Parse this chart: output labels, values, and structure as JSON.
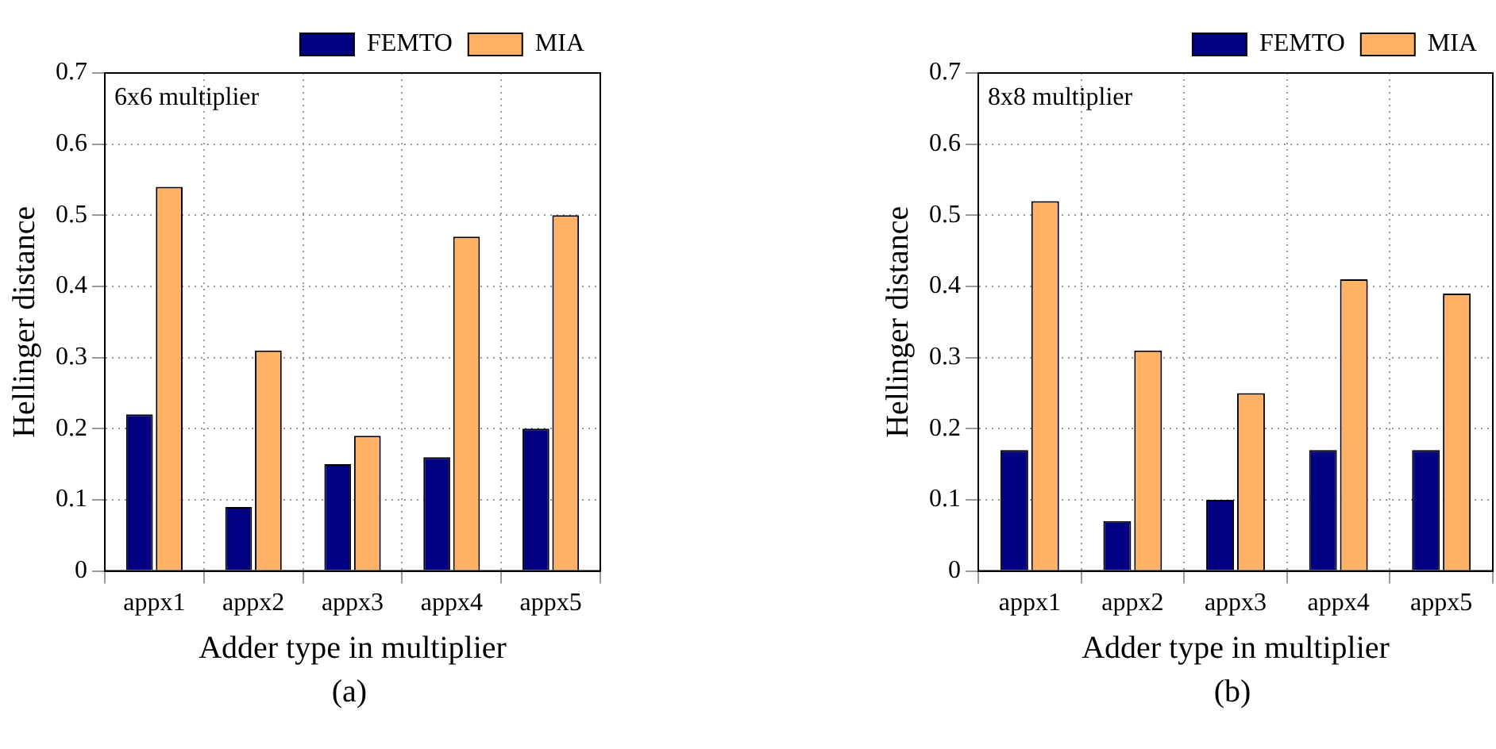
{
  "chart_data": [
    {
      "type": "bar",
      "xlabel": "Adder type in multiplier",
      "ylabel": "Hellinger distance",
      "categories": [
        "appx1",
        "appx2",
        "appx3",
        "appx4",
        "appx5"
      ],
      "series": [
        {
          "name": "FEMTO",
          "color": "#000080",
          "values": [
            0.22,
            0.09,
            0.15,
            0.16,
            0.2
          ]
        },
        {
          "name": "MIA",
          "color": "#ffb266",
          "values": [
            0.54,
            0.31,
            0.19,
            0.47,
            0.5
          ]
        }
      ],
      "ylim": [
        0,
        0.7
      ],
      "yticks": [
        0,
        0.1,
        0.2,
        0.3,
        0.4,
        0.5,
        0.6,
        0.7
      ],
      "grid": true,
      "legend": "top right",
      "annotations": [
        "6x6 multiplier",
        "(a)"
      ]
    },
    {
      "type": "bar",
      "xlabel": "Adder type in multiplier",
      "ylabel": "Hellinger distance",
      "categories": [
        "appx1",
        "appx2",
        "appx3",
        "appx4",
        "appx5"
      ],
      "series": [
        {
          "name": "FEMTO",
          "color": "#000080",
          "values": [
            0.17,
            0.07,
            0.1,
            0.17,
            0.17
          ]
        },
        {
          "name": "MIA",
          "color": "#ffb266",
          "values": [
            0.52,
            0.31,
            0.25,
            0.41,
            0.39
          ]
        }
      ],
      "ylim": [
        0,
        0.7
      ],
      "yticks": [
        0,
        0.1,
        0.2,
        0.3,
        0.4,
        0.5,
        0.6,
        0.7
      ],
      "grid": true,
      "legend": "top right",
      "annotations": [
        "8x8 multiplier",
        "(b)"
      ]
    }
  ]
}
